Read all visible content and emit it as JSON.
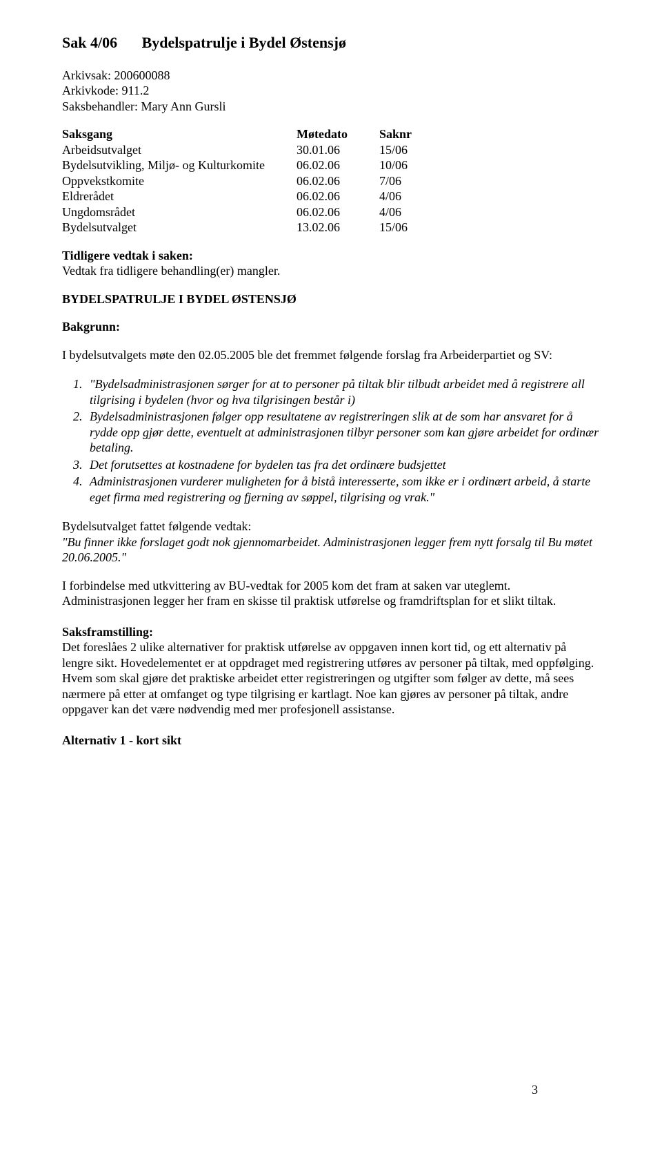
{
  "title": {
    "sak": "Sak 4/06",
    "heading": "Bydelspatrulje i Bydel Østensjø"
  },
  "arkiv": {
    "arkivsak_label": "Arkivsak:",
    "arkivsak": "200600088",
    "arkivkode_label": "Arkivkode:",
    "arkivkode": "911.2",
    "saksbehandler_label": "Saksbehandler:",
    "saksbehandler": "Mary Ann Gursli"
  },
  "saksgang": {
    "headers": {
      "body": "Saksgang",
      "date": "Møtedato",
      "nr": "Saknr"
    },
    "rows": [
      {
        "body": "Arbeidsutvalget",
        "date": "30.01.06",
        "nr": "15/06"
      },
      {
        "body": "Bydelsutvikling, Miljø- og Kulturkomite",
        "date": "06.02.06",
        "nr": "10/06"
      },
      {
        "body": "Oppvekstkomite",
        "date": "06.02.06",
        "nr": "7/06"
      },
      {
        "body": "Eldrerådet",
        "date": "06.02.06",
        "nr": "4/06"
      },
      {
        "body": "Ungdomsrådet",
        "date": "06.02.06",
        "nr": "4/06"
      },
      {
        "body": "Bydelsutvalget",
        "date": "13.02.06",
        "nr": "15/06"
      }
    ]
  },
  "tidligere": {
    "heading": "Tidligere vedtak i saken:",
    "text": "Vedtak fra tidligere behandling(er) mangler."
  },
  "section_title": "BYDELSPATRULJE I BYDEL ØSTENSJØ",
  "bakgrunn": {
    "label": "Bakgrunn:",
    "intro": "I bydelsutvalgets møte den 02.05.2005 ble det fremmet følgende forslag fra Arbeiderpartiet og SV:"
  },
  "forslag": [
    "\"Bydelsadministrasjonen sørger for at to personer på tiltak blir tilbudt arbeidet med å registrere all tilgrising i bydelen (hvor og hva tilgrisingen består i)",
    "Bydelsadministrasjonen følger opp resultatene av registreringen slik at de som har ansvaret for å rydde opp gjør dette, eventuelt at administrasjonen tilbyr personer som kan gjøre arbeidet for ordinær betaling.",
    "Det forutsettes at kostnadene for bydelen tas fra det ordinære budsjettet",
    "Administrasjonen vurderer muligheten for å bistå interesserte, som ikke er i ordinært arbeid, å starte eget firma med registrering og fjerning av søppel, tilgrising og vrak.\""
  ],
  "vedtak": {
    "lead": "Bydelsutvalget fattet følgende vedtak:",
    "quote": "\"Bu finner ikke forslaget godt nok gjennomarbeidet. Administrasjonen legger frem nytt forsalg til Bu møtet 20.06.2005.\""
  },
  "utkvittering": "I forbindelse med utkvittering av BU-vedtak for 2005 kom det fram at saken var uteglemt. Administrasjonen legger her fram en skisse til praktisk utførelse og framdriftsplan for et slikt tiltak.",
  "saksframstilling": {
    "label": "Saksframstilling:",
    "text": "Det foreslåes 2 ulike alternativer for praktisk utførelse av oppgaven innen kort tid, og ett alternativ på lengre sikt. Hovedelementet er at oppdraget med registrering utføres av personer på tiltak, med oppfølging. Hvem som skal gjøre det praktiske arbeidet etter registreringen og utgifter som følger av dette, må sees nærmere på etter at omfanget og type tilgrising er kartlagt. Noe kan gjøres av personer på tiltak, andre oppgaver kan det være nødvendig med mer profesjonell assistanse."
  },
  "alt1_heading": "Alternativ 1 - kort sikt",
  "page_number": "3"
}
